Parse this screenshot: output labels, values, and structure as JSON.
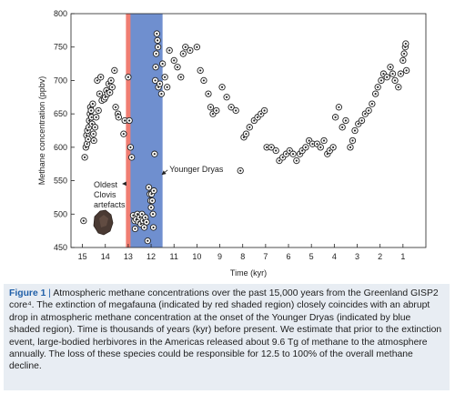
{
  "chart_data": {
    "type": "scatter",
    "xlabel": "Time (kyr)",
    "ylabel": "Methane concentration (ppbv)",
    "xlim": [
      15.5,
      0
    ],
    "ylim": [
      450,
      800
    ],
    "x_ticks": [
      15,
      14,
      13,
      12,
      11,
      10,
      9,
      8,
      7,
      6,
      5,
      4,
      3,
      2,
      1
    ],
    "y_ticks": [
      450,
      500,
      550,
      600,
      650,
      700,
      750,
      800
    ],
    "regions": [
      {
        "name": "megafauna-extinction",
        "color": "#f07d72",
        "x_start": 13.1,
        "x_end": 12.5
      },
      {
        "name": "younger-dryas",
        "color": "#6f8fcf",
        "x_start": 12.9,
        "x_end": 11.5
      }
    ],
    "annotations": [
      {
        "text": "Younger Dryas",
        "x": 11.2,
        "y": 562,
        "arrow_to": [
          11.6,
          562
        ]
      },
      {
        "text": "Oldest Clovis artefacts",
        "x": 14.6,
        "y": 528,
        "arrow_to": [
          13.2,
          544
        ]
      }
    ],
    "colors": {
      "marker_fill": "#ffffff",
      "marker_stroke": "#222222",
      "marker_center": "#222222"
    },
    "points": [
      [
        14.95,
        490
      ],
      [
        14.9,
        585
      ],
      [
        14.85,
        600
      ],
      [
        14.82,
        618
      ],
      [
        14.8,
        605
      ],
      [
        14.78,
        625
      ],
      [
        14.75,
        612
      ],
      [
        14.72,
        630
      ],
      [
        14.7,
        640
      ],
      [
        14.67,
        650
      ],
      [
        14.65,
        660
      ],
      [
        14.62,
        655
      ],
      [
        14.6,
        645
      ],
      [
        14.58,
        635
      ],
      [
        14.55,
        665
      ],
      [
        14.52,
        620
      ],
      [
        14.5,
        610
      ],
      [
        14.45,
        630
      ],
      [
        14.4,
        645
      ],
      [
        14.35,
        700
      ],
      [
        14.3,
        655
      ],
      [
        14.25,
        680
      ],
      [
        14.2,
        705
      ],
      [
        14.15,
        670
      ],
      [
        14.05,
        672
      ],
      [
        14.0,
        675
      ],
      [
        13.95,
        685
      ],
      [
        13.9,
        680
      ],
      [
        13.85,
        695
      ],
      [
        13.8,
        682
      ],
      [
        13.75,
        700
      ],
      [
        13.7,
        690
      ],
      [
        13.6,
        715
      ],
      [
        13.55,
        660
      ],
      [
        13.45,
        650
      ],
      [
        13.42,
        645
      ],
      [
        13.2,
        620
      ],
      [
        13.15,
        640
      ],
      [
        13.0,
        705
      ],
      [
        12.95,
        640
      ],
      [
        12.9,
        600
      ],
      [
        12.85,
        585
      ],
      [
        12.78,
        498
      ],
      [
        12.72,
        490
      ],
      [
        12.7,
        478
      ],
      [
        12.65,
        492
      ],
      [
        12.6,
        500
      ],
      [
        12.55,
        488
      ],
      [
        12.5,
        495
      ],
      [
        12.45,
        485
      ],
      [
        12.4,
        500
      ],
      [
        12.35,
        490
      ],
      [
        12.3,
        480
      ],
      [
        12.25,
        495
      ],
      [
        12.2,
        488
      ],
      [
        12.15,
        460
      ],
      [
        12.1,
        540
      ],
      [
        12.05,
        530
      ],
      [
        12.02,
        520
      ],
      [
        12.0,
        510
      ],
      [
        11.98,
        530
      ],
      [
        11.95,
        520
      ],
      [
        11.92,
        500
      ],
      [
        11.9,
        480
      ],
      [
        11.88,
        535
      ],
      [
        11.85,
        590
      ],
      [
        11.82,
        700
      ],
      [
        11.8,
        720
      ],
      [
        11.78,
        740
      ],
      [
        11.75,
        770
      ],
      [
        11.72,
        760
      ],
      [
        11.7,
        750
      ],
      [
        11.68,
        690
      ],
      [
        11.62,
        695
      ],
      [
        11.55,
        680
      ],
      [
        11.5,
        725
      ],
      [
        11.4,
        705
      ],
      [
        11.3,
        690
      ],
      [
        11.2,
        745
      ],
      [
        11.0,
        730
      ],
      [
        10.85,
        720
      ],
      [
        10.7,
        705
      ],
      [
        10.6,
        740
      ],
      [
        10.5,
        750
      ],
      [
        10.3,
        745
      ],
      [
        10.0,
        750
      ],
      [
        9.85,
        715
      ],
      [
        9.7,
        700
      ],
      [
        9.5,
        680
      ],
      [
        9.4,
        660
      ],
      [
        9.3,
        650
      ],
      [
        9.15,
        655
      ],
      [
        8.9,
        690
      ],
      [
        8.7,
        675
      ],
      [
        8.5,
        660
      ],
      [
        8.3,
        655
      ],
      [
        8.1,
        565
      ],
      [
        7.95,
        615
      ],
      [
        7.85,
        620
      ],
      [
        7.7,
        630
      ],
      [
        7.5,
        640
      ],
      [
        7.35,
        645
      ],
      [
        7.2,
        650
      ],
      [
        7.05,
        655
      ],
      [
        6.95,
        600
      ],
      [
        6.75,
        600
      ],
      [
        6.55,
        595
      ],
      [
        6.4,
        580
      ],
      [
        6.25,
        585
      ],
      [
        6.1,
        590
      ],
      [
        5.95,
        595
      ],
      [
        5.8,
        590
      ],
      [
        5.65,
        580
      ],
      [
        5.5,
        590
      ],
      [
        5.4,
        595
      ],
      [
        5.25,
        600
      ],
      [
        5.1,
        610
      ],
      [
        4.95,
        605
      ],
      [
        4.75,
        605
      ],
      [
        4.6,
        600
      ],
      [
        4.45,
        610
      ],
      [
        4.3,
        590
      ],
      [
        4.2,
        595
      ],
      [
        4.05,
        600
      ],
      [
        3.95,
        645
      ],
      [
        3.8,
        660
      ],
      [
        3.65,
        630
      ],
      [
        3.5,
        640
      ],
      [
        3.3,
        600
      ],
      [
        3.2,
        610
      ],
      [
        3.1,
        625
      ],
      [
        2.95,
        635
      ],
      [
        2.8,
        640
      ],
      [
        2.65,
        650
      ],
      [
        2.5,
        655
      ],
      [
        2.35,
        665
      ],
      [
        2.2,
        680
      ],
      [
        2.1,
        690
      ],
      [
        1.95,
        700
      ],
      [
        1.85,
        710
      ],
      [
        1.7,
        705
      ],
      [
        1.55,
        720
      ],
      [
        1.45,
        710
      ],
      [
        1.35,
        700
      ],
      [
        1.2,
        690
      ],
      [
        1.1,
        710
      ],
      [
        1.0,
        730
      ],
      [
        0.95,
        740
      ],
      [
        0.9,
        750
      ],
      [
        0.88,
        755
      ],
      [
        0.85,
        715
      ]
    ]
  },
  "caption": {
    "fig_label": "Figure 1",
    "separator": " | ",
    "text": "Atmospheric methane concentrations over the past 15,000 years from the Greenland GISP2 core⁴. The extinction of megafauna (indicated by red shaded region) closely coincides with an abrupt drop in atmospheric methane concentration at the onset of the Younger Dryas (indicated by blue shaded region). Time is thousands of years (kyr) before present. We estimate that prior to the extinction event, large-bodied herbivores in the Americas released about 9.6 Tg of methane to the atmosphere annually. The loss of these species could be responsible for 12.5 to 100% of the overall methane decline."
  }
}
